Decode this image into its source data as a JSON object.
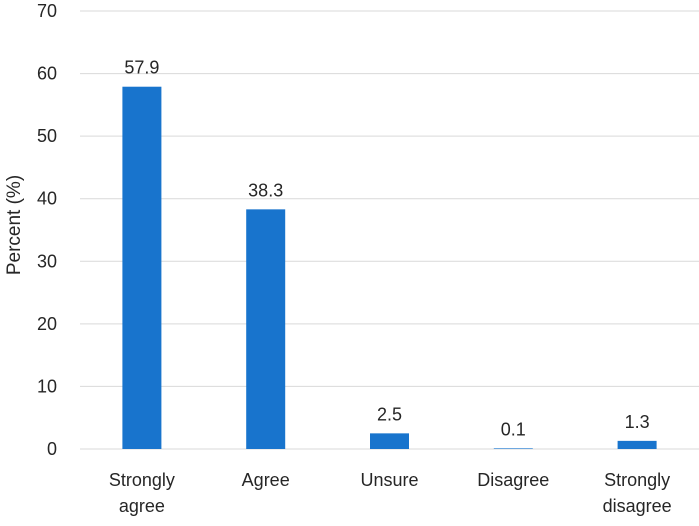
{
  "chart_data": {
    "type": "bar",
    "title": "",
    "xlabel": "",
    "ylabel": "Percent (%)",
    "categories": [
      [
        "Strongly",
        "agree"
      ],
      [
        "Agree"
      ],
      [
        "Unsure"
      ],
      [
        "Disagree"
      ],
      [
        "Strongly",
        "disagree"
      ]
    ],
    "values": [
      57.9,
      38.3,
      2.5,
      0.1,
      1.3
    ],
    "data_labels": [
      "57.9",
      "38.3",
      "2.5",
      "0.1",
      "1.3"
    ],
    "ylim": [
      0,
      70
    ],
    "yticks": [
      0,
      10,
      20,
      30,
      40,
      50,
      60,
      70
    ],
    "grid": true,
    "legend": "none",
    "bar_color": "#1874CD"
  }
}
